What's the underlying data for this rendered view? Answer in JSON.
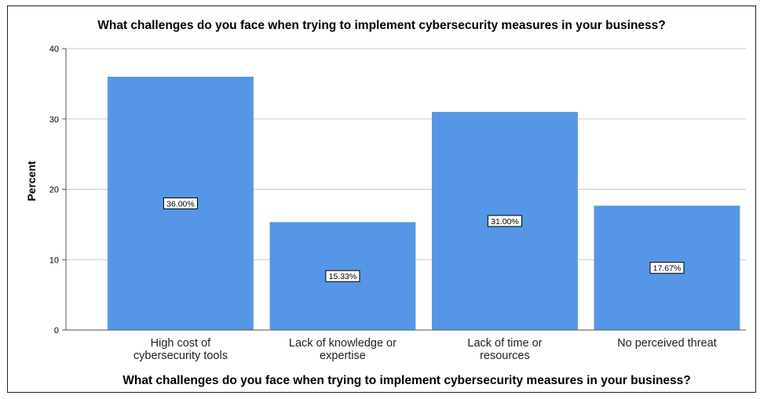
{
  "chart_data": {
    "type": "bar",
    "title": "What challenges do you face when trying to implement cybersecurity measures in your business?",
    "xlabel": "What challenges do you face when trying to implement cybersecurity measures in your business?",
    "ylabel": "Percent",
    "categories": [
      [
        "High cost of",
        "cybersecurity tools"
      ],
      [
        "Lack of knowledge or",
        "expertise"
      ],
      [
        "Lack of time or",
        "resources"
      ],
      [
        "No perceived threat"
      ]
    ],
    "values": [
      36.0,
      15.33,
      31.0,
      17.67
    ],
    "data_labels": [
      "36.00%",
      "15.33%",
      "31.00%",
      "17.67%"
    ],
    "ylim": [
      0,
      40
    ],
    "yticks": [
      0,
      10,
      20,
      30,
      40
    ],
    "grid": true,
    "colors": {
      "bar": "#5596e6",
      "grid": "#c9c9c9",
      "axis": "#555555"
    }
  }
}
